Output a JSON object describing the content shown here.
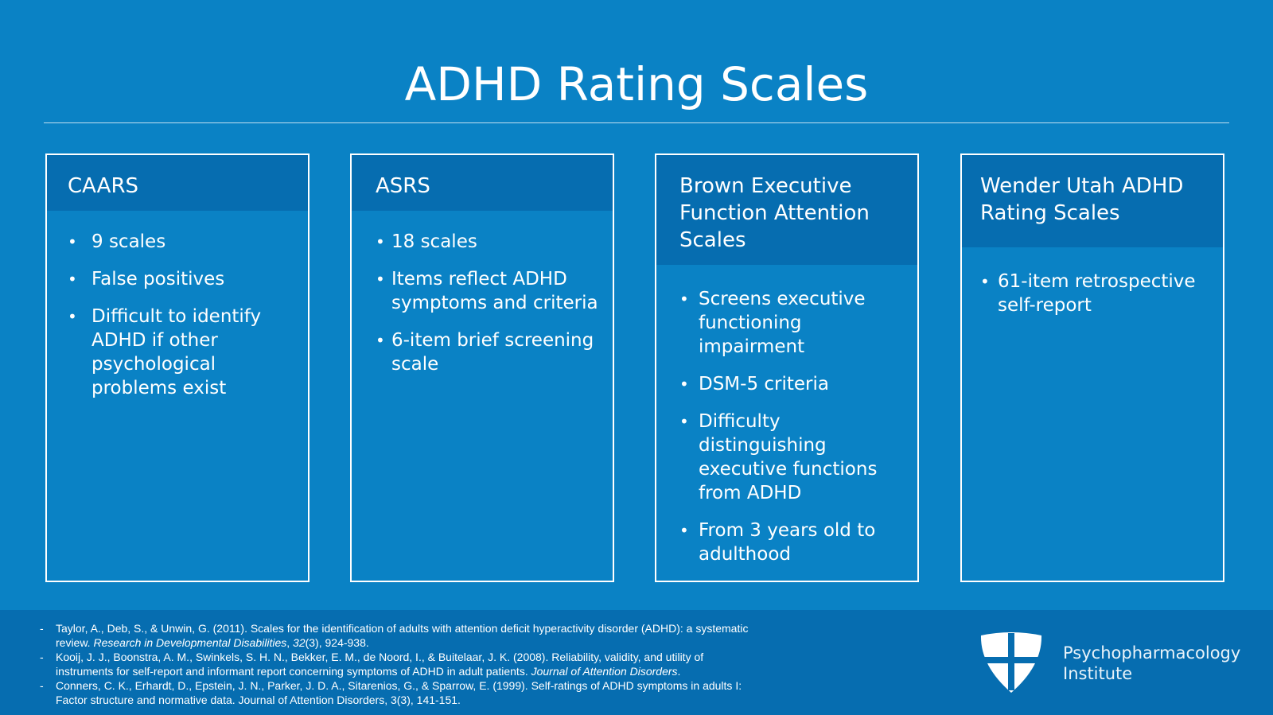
{
  "slide": {
    "title": "ADHD Rating Scales"
  },
  "cards": [
    {
      "heading": "CAARS",
      "items": [
        "9 scales",
        "False positives",
        "Difficult to identify ADHD if other psychological problems exist"
      ]
    },
    {
      "heading": "ASRS",
      "items": [
        "18 scales",
        "Items reflect ADHD symptoms and criteria",
        "6-item brief screening scale"
      ]
    },
    {
      "heading": "Brown Executive Function Attention Scales",
      "items": [
        "Screens executive functioning impairment",
        "DSM-5 criteria",
        "Difficulty distinguishing executive functions from ADHD",
        "From 3 years old to adulthood"
      ]
    },
    {
      "heading": "Wender Utah ADHD Rating Scales",
      "items": [
        "61-item retrospective self-report"
      ]
    }
  ],
  "references": [
    {
      "before": "Taylor, A., Deb, S., & Unwin, G. (2011). Scales for the identification of adults with attention deficit hyperactivity disorder (ADHD): a systematic review. ",
      "journal": "Research in Developmental Disabilities",
      "sep": ", ",
      "volume": "32",
      "after": "(3), 924-938."
    },
    {
      "before": "Kooij, J. J., Boonstra, A. M., Swinkels, S. H. N., Bekker, E. M., de Noord, I., & Buitelaar, J. K. (2008). Reliability, validity, and utility of instruments for self-report and informant report concerning symptoms of ADHD in adult patients. ",
      "journal": "Journal of Attention Disorders",
      "after": "."
    },
    {
      "before": "Conners, C. K., Erhardt, D., Epstein, J. N., Parker, J. D. A., Sitarenios, G., & Sparrow, E. (1999). Self-ratings of ADHD symptoms in adults I: Factor structure and normative data. Journal of Attention Disorders, 3(3), 141-151."
    }
  ],
  "brand": {
    "line1": "Psychopharmacology",
    "line2": "Institute",
    "logo_icon": "shield-cross-icon"
  },
  "colors": {
    "background": "#0a82c5",
    "card_header": "#066db0",
    "footer": "#066db0",
    "text": "#ffffff"
  }
}
